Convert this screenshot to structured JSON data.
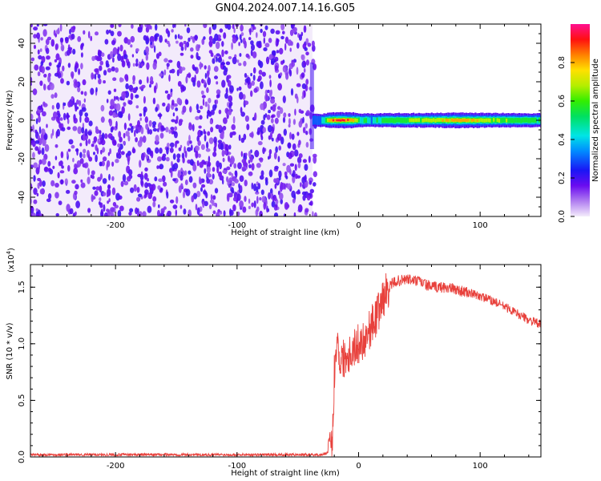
{
  "title": "GN04.2024.007.14.16.G05",
  "chart_data": [
    {
      "type": "heatmap",
      "xlabel": "Height of straight line (km)",
      "ylabel": "Frequency (Hz)",
      "xlim": [
        -270,
        150
      ],
      "ylim": [
        -50,
        50
      ],
      "x_ticks": [
        "-200",
        "-100",
        "0",
        "100"
      ],
      "x_tick_values": [
        -200,
        -100,
        0,
        100
      ],
      "y_ticks": [
        "-40",
        "-20",
        "0",
        "20",
        "40"
      ],
      "y_tick_values": [
        -40,
        -20,
        0,
        20,
        40
      ],
      "noise_region": {
        "x_range": [
          -270,
          -38
        ],
        "description_level": 0.1
      },
      "signal_track": {
        "frequency": 0,
        "points": [
          {
            "x": -38,
            "amp": 0.3
          },
          {
            "x": -30,
            "amp": 0.35
          },
          {
            "x": -25,
            "amp": 0.8
          },
          {
            "x": -15,
            "amp": 0.95
          },
          {
            "x": -5,
            "amp": 0.85
          },
          {
            "x": 0,
            "amp": 0.45
          },
          {
            "x": 5,
            "amp": 0.5
          },
          {
            "x": 10,
            "amp": 0.4
          },
          {
            "x": 20,
            "amp": 0.55
          },
          {
            "x": 40,
            "amp": 0.6
          },
          {
            "x": 60,
            "amp": 0.65
          },
          {
            "x": 80,
            "amp": 0.85
          },
          {
            "x": 100,
            "amp": 0.7
          },
          {
            "x": 120,
            "amp": 0.6
          },
          {
            "x": 150,
            "amp": 0.5
          }
        ]
      },
      "colorbar": {
        "label": "Normalized spectral amplitude",
        "range": [
          0,
          1
        ],
        "ticks": [
          "0.0",
          "0.2",
          "0.4",
          "0.6",
          "0.8"
        ],
        "tick_values": [
          0,
          0.2,
          0.4,
          0.6,
          0.8
        ]
      }
    },
    {
      "type": "line",
      "xlabel": "Height of straight line (km)",
      "ylabel": "SNR (10 * v/v)",
      "y_multiplier_label": "(x10",
      "y_multiplier_exp": "4",
      "xlim": [
        -270,
        150
      ],
      "ylim": [
        0,
        1.7
      ],
      "x_ticks": [
        "-200",
        "-100",
        "0",
        "100"
      ],
      "x_tick_values": [
        -200,
        -100,
        0,
        100
      ],
      "y_ticks": [
        "0.0",
        "0.5",
        "1.0",
        "1.5"
      ],
      "y_tick_values": [
        0,
        0.5,
        1.0,
        1.5
      ],
      "series": [
        {
          "color": "#e8413c",
          "x": [
            -270,
            -200,
            -100,
            -30,
            -23,
            -21,
            -20,
            -18,
            -15,
            -10,
            -5,
            0,
            5,
            10,
            15,
            20,
            25,
            30,
            40,
            50,
            60,
            70,
            80,
            90,
            100,
            110,
            120,
            130,
            140,
            150
          ],
          "y": [
            0.02,
            0.02,
            0.02,
            0.02,
            0.05,
            0.25,
            0.75,
            1.05,
            0.85,
            0.9,
            0.95,
            1.0,
            1.05,
            1.15,
            1.25,
            1.4,
            1.5,
            1.55,
            1.57,
            1.55,
            1.5,
            1.5,
            1.48,
            1.45,
            1.42,
            1.38,
            1.33,
            1.27,
            1.21,
            1.17
          ]
        }
      ]
    }
  ]
}
